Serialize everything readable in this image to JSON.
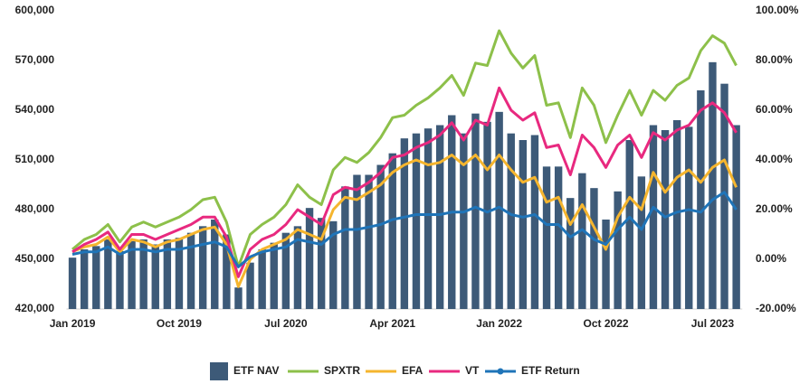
{
  "chart_data": {
    "type": "combo",
    "categories": [
      "Jan 2019",
      null,
      null,
      null,
      null,
      null,
      null,
      null,
      null,
      "Oct 2019",
      null,
      null,
      null,
      null,
      null,
      null,
      null,
      null,
      "Jul 2020",
      null,
      null,
      null,
      null,
      null,
      null,
      null,
      null,
      "Apr 2021",
      null,
      null,
      null,
      null,
      null,
      null,
      null,
      null,
      "Jan 2022",
      null,
      null,
      null,
      null,
      null,
      null,
      null,
      null,
      "Oct 2022",
      null,
      null,
      null,
      null,
      null,
      null,
      null,
      null,
      "Jul 2023",
      null,
      null
    ],
    "ylim": [
      420000,
      600000
    ],
    "yticks": [
      {
        "value": 420000,
        "label": "420,000"
      },
      {
        "value": 450000,
        "label": "450,000"
      },
      {
        "value": 480000,
        "label": "480,000"
      },
      {
        "value": 510000,
        "label": "510,000"
      },
      {
        "value": 540000,
        "label": "540,000"
      },
      {
        "value": 570000,
        "label": "570,000"
      },
      {
        "value": 600000,
        "label": "600,000"
      }
    ],
    "y2lim": [
      -20,
      100
    ],
    "y2ticks": [
      {
        "value": -20,
        "label": "-20.00%"
      },
      {
        "value": 0,
        "label": "0.00%"
      },
      {
        "value": 20,
        "label": "20.00%"
      },
      {
        "value": 40,
        "label": "40.00%"
      },
      {
        "value": 60,
        "label": "60.00%"
      },
      {
        "value": 80,
        "label": "80.00%"
      },
      {
        "value": 100,
        "label": "100.00%"
      }
    ],
    "series": [
      {
        "name": "ETF NAV",
        "type": "bar",
        "color": "#3d5a78",
        "values": [
          451000,
          456000,
          458000,
          462000,
          455000,
          461000,
          462000,
          459000,
          462000,
          463000,
          466000,
          470000,
          474000,
          465000,
          433000,
          448000,
          456000,
          460000,
          466000,
          470000,
          481000,
          475000,
          473000,
          494000,
          501000,
          501000,
          507000,
          514000,
          523000,
          526000,
          529000,
          531000,
          537000,
          526000,
          538000,
          533000,
          539000,
          526000,
          522000,
          525000,
          506000,
          506000,
          487000,
          502000,
          493000,
          474000,
          491000,
          522000,
          500000,
          531000,
          528000,
          534000,
          530000,
          552000,
          569000,
          556000,
          531000
        ]
      },
      {
        "name": "SPXTR",
        "type": "line",
        "axis": "y2",
        "color": "#8dc04a",
        "values": [
          4,
          8,
          10,
          14,
          7,
          13,
          15,
          13,
          15,
          17,
          20,
          24,
          25,
          15,
          -3,
          10,
          14,
          17,
          22,
          30,
          25,
          22,
          36,
          41,
          39,
          43,
          49,
          57,
          58,
          62,
          65,
          69,
          74,
          66,
          79,
          78,
          92,
          83,
          77,
          82,
          62,
          63,
          49,
          69,
          62,
          47,
          58,
          68,
          58,
          68,
          64,
          70,
          73,
          84,
          90,
          87,
          78
        ]
      },
      {
        "name": "EFA",
        "type": "line",
        "axis": "y2",
        "color": "#f5b52e",
        "values": [
          3,
          5,
          6,
          9,
          3,
          8,
          7,
          5,
          7,
          8,
          10,
          12,
          13,
          6,
          -11,
          0,
          4,
          6,
          8,
          12,
          10,
          8,
          20,
          25,
          24,
          27,
          30,
          35,
          38,
          40,
          38,
          39,
          42,
          38,
          42,
          36,
          42,
          36,
          31,
          33,
          23,
          25,
          14,
          22,
          13,
          4,
          17,
          25,
          20,
          35,
          27,
          33,
          36,
          31,
          37,
          40,
          29
        ]
      },
      {
        "name": "VT",
        "type": "line",
        "axis": "y2",
        "color": "#e8297f",
        "values": [
          3,
          6,
          8,
          11,
          4,
          10,
          10,
          8,
          10,
          12,
          14,
          17,
          17,
          9,
          -7,
          4,
          8,
          10,
          14,
          20,
          17,
          14,
          26,
          29,
          28,
          31,
          35,
          41,
          42,
          45,
          47,
          50,
          55,
          48,
          56,
          54,
          69,
          60,
          56,
          59,
          45,
          46,
          34,
          50,
          45,
          37,
          46,
          50,
          41,
          51,
          48,
          52,
          54,
          60,
          63,
          59,
          51
        ]
      },
      {
        "name": "ETF Return",
        "type": "line",
        "axis": "y2",
        "color": "#1f74b8",
        "values": [
          2,
          3,
          3,
          5,
          2,
          4,
          4,
          3,
          4,
          4,
          5,
          6,
          7,
          5,
          -3,
          1,
          3,
          4,
          5,
          8,
          7,
          6,
          10,
          12,
          12,
          13,
          14,
          16,
          17,
          18,
          18,
          18,
          19,
          19,
          21,
          19,
          21,
          18,
          17,
          18,
          14,
          14,
          9,
          12,
          8,
          6,
          12,
          17,
          12,
          21,
          17,
          19,
          20,
          19,
          24,
          27,
          20
        ]
      }
    ]
  }
}
